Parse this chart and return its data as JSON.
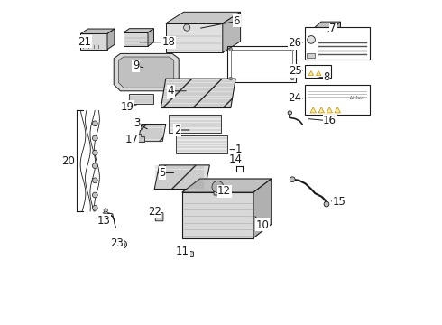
{
  "bg_color": "#ffffff",
  "line_color": "#1a1a1a",
  "gray_fill": "#d8d8d8",
  "light_fill": "#f0f0f0",
  "dark_fill": "#b0b0b0",
  "label_fontsize": 8.5,
  "label_fontsize_small": 7.5,
  "parts_labels": {
    "1": [
      0.558,
      0.458,
      0.505,
      0.458
    ],
    "2": [
      0.37,
      0.39,
      0.415,
      0.39
    ],
    "3": [
      0.268,
      0.318,
      0.31,
      0.318
    ],
    "4": [
      0.345,
      0.258,
      0.39,
      0.258
    ],
    "5": [
      0.34,
      0.6,
      0.378,
      0.6
    ],
    "6": [
      0.545,
      0.075,
      0.565,
      0.088
    ],
    "7": [
      0.845,
      0.088,
      0.82,
      0.1
    ],
    "8": [
      0.82,
      0.248,
      0.795,
      0.248
    ],
    "9": [
      0.248,
      0.198,
      0.278,
      0.198
    ],
    "10": [
      0.608,
      0.69,
      0.572,
      0.69
    ],
    "11": [
      0.385,
      0.79,
      0.41,
      0.79
    ],
    "12": [
      0.608,
      0.575,
      0.58,
      0.575
    ],
    "13": [
      0.228,
      0.618,
      0.242,
      0.638
    ],
    "14": [
      0.548,
      0.495,
      0.548,
      0.508
    ],
    "15": [
      0.87,
      0.518,
      0.848,
      0.518
    ],
    "16": [
      0.842,
      0.355,
      0.818,
      0.368
    ],
    "17": [
      0.265,
      0.398,
      0.282,
      0.405
    ],
    "18": [
      0.342,
      0.085,
      0.368,
      0.098
    ],
    "19": [
      0.278,
      0.298,
      0.288,
      0.288
    ],
    "20": [
      0.038,
      0.445,
      0.058,
      0.445
    ],
    "21": [
      0.128,
      0.118,
      0.155,
      0.118
    ],
    "22": [
      0.318,
      0.66,
      0.328,
      0.668
    ],
    "23": [
      0.198,
      0.748,
      0.218,
      0.748
    ],
    "24": [
      0.728,
      0.695,
      0.758,
      0.695
    ],
    "25": [
      0.728,
      0.798,
      0.758,
      0.798
    ],
    "26": [
      0.728,
      0.888,
      0.758,
      0.888
    ]
  }
}
